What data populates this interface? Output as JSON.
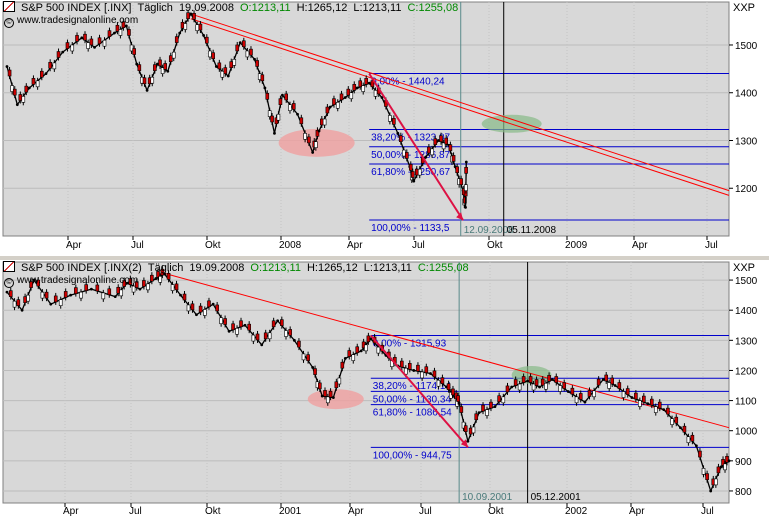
{
  "panels": [
    {
      "title": "S&P 500 INDEX [.INX]",
      "interval": "Täglich",
      "date": "19.09.2008",
      "open": "O:1213,11",
      "high": "H:1265,12",
      "low": "L:1213,11",
      "close": "C:1255,08",
      "watermark": "www.tradesignalonline.com",
      "ticker": "XXP",
      "y_ticks": [
        "1500",
        "1400",
        "1300",
        "1200"
      ],
      "x_ticks": [
        "Apr",
        "Jul",
        "Okt",
        "2008",
        "Apr",
        "Jul",
        "Okt",
        "2009",
        "Apr",
        "Jul"
      ],
      "fib_labels": [
        "0,00% - 1440,24",
        "38,20% - 1323,07",
        "50,00% - 1286,87",
        "61,80% - 1250,67",
        "100,00% - 1133,5"
      ],
      "date_labels": [
        "12.09.2008",
        "05.11.2008"
      ]
    },
    {
      "title": "S&P 500 INDEX [.INX(2)",
      "interval": "Täglich",
      "date": "19.09.2008",
      "open": "O:1213,11",
      "high": "H:1265,12",
      "low": "L:1213,11",
      "close": "C:1255,08",
      "watermark": "www.tradesignalonline.com",
      "ticker": "XXP",
      "y_ticks": [
        "1500",
        "1400",
        "1300",
        "1200",
        "1100",
        "1000",
        "900",
        "800"
      ],
      "x_ticks": [
        "Apr",
        "Jul",
        "Okt",
        "2001",
        "Apr",
        "Jul",
        "Okt",
        "2002",
        "Apr",
        "Jul"
      ],
      "fib_labels": [
        "0,00% - 1315,93",
        "38,20% - 1174,14",
        "50,00% - 1130,34",
        "61,80% - 1086,54",
        "100,00% - 944,75"
      ],
      "date_labels": [
        "10.09.2001",
        "05.12.2001"
      ]
    }
  ],
  "colors": {
    "plot_bg": "#d8d8d8",
    "fib": "#0000cc",
    "trend": "#ff0000",
    "arrow": "#dd1144",
    "ellipse_red": "#f0a0a0",
    "ellipse_green": "#88bb88",
    "candle_up": "#ffffff",
    "candle_down": "#cc0000",
    "vline": "#000000",
    "ohlc_open": "#008800",
    "ohlc_close": "#008800"
  },
  "chart_data": [
    {
      "type": "line",
      "title": "S&P 500 INDEX [.INX]",
      "ylim": [
        1100,
        1590
      ],
      "x_range": [
        "2007-02-15",
        "2009-08-15"
      ],
      "y_ticks": [
        1500,
        1400,
        1300,
        1200
      ],
      "grid": true,
      "series": [
        {
          "values": [
            [
              "2007-02-20",
              1455
            ],
            [
              "2007-03-05",
              1375
            ],
            [
              "2007-03-20",
              1410
            ],
            [
              "2007-04-10",
              1440
            ],
            [
              "2007-05-01",
              1485
            ],
            [
              "2007-05-25",
              1515
            ],
            [
              "2007-06-10",
              1495
            ],
            [
              "2007-07-05",
              1525
            ],
            [
              "2007-07-20",
              1540
            ],
            [
              "2007-08-02",
              1460
            ],
            [
              "2007-08-15",
              1405
            ],
            [
              "2007-08-28",
              1460
            ],
            [
              "2007-09-10",
              1445
            ],
            [
              "2007-09-25",
              1525
            ],
            [
              "2007-10-09",
              1565
            ],
            [
              "2007-10-25",
              1520
            ],
            [
              "2007-11-10",
              1455
            ],
            [
              "2007-11-25",
              1435
            ],
            [
              "2007-12-10",
              1505
            ],
            [
              "2007-12-28",
              1470
            ],
            [
              "2008-01-10",
              1410
            ],
            [
              "2008-01-22",
              1315
            ],
            [
              "2008-02-01",
              1395
            ],
            [
              "2008-02-20",
              1355
            ],
            [
              "2008-03-10",
              1275
            ],
            [
              "2008-03-18",
              1320
            ],
            [
              "2008-04-01",
              1370
            ],
            [
              "2008-04-20",
              1390
            ],
            [
              "2008-05-05",
              1410
            ],
            [
              "2008-05-20",
              1420
            ],
            [
              "2008-06-05",
              1390
            ],
            [
              "2008-06-25",
              1315
            ],
            [
              "2008-07-10",
              1245
            ],
            [
              "2008-07-15",
              1215
            ],
            [
              "2008-07-30",
              1265
            ],
            [
              "2008-08-15",
              1300
            ],
            [
              "2008-08-28",
              1290
            ],
            [
              "2008-09-05",
              1245
            ],
            [
              "2008-09-15",
              1195
            ],
            [
              "2008-09-18",
              1160
            ],
            [
              "2008-09-19",
              1255
            ]
          ]
        }
      ],
      "fibonacci": [
        {
          "level": "0,00%",
          "value": 1440.24
        },
        {
          "level": "38,20%",
          "value": 1323.07
        },
        {
          "level": "50,00%",
          "value": 1286.87
        },
        {
          "level": "61,80%",
          "value": 1250.67
        },
        {
          "level": "100,00%",
          "value": 1133.5
        }
      ],
      "vertical_markers": [
        "2008-09-12",
        "2008-11-05"
      ]
    },
    {
      "type": "line",
      "title": "S&P 500 INDEX [.INX(2)",
      "ylim": [
        760,
        1560
      ],
      "x_range": [
        "2000-02-15",
        "2002-08-15"
      ],
      "y_ticks": [
        1500,
        1400,
        1300,
        1200,
        1100,
        1000,
        900,
        800
      ],
      "grid": true,
      "series": [
        {
          "values": [
            [
              "2000-02-20",
              1460
            ],
            [
              "2000-03-10",
              1400
            ],
            [
              "2000-03-25",
              1500
            ],
            [
              "2000-04-15",
              1420
            ],
            [
              "2000-05-10",
              1450
            ],
            [
              "2000-06-05",
              1470
            ],
            [
              "2000-07-05",
              1445
            ],
            [
              "2000-07-20",
              1490
            ],
            [
              "2000-08-05",
              1470
            ],
            [
              "2000-08-25",
              1505
            ],
            [
              "2000-09-05",
              1520
            ],
            [
              "2000-09-25",
              1450
            ],
            [
              "2000-10-15",
              1385
            ],
            [
              "2000-11-05",
              1420
            ],
            [
              "2000-11-25",
              1330
            ],
            [
              "2000-12-15",
              1350
            ],
            [
              "2001-01-05",
              1285
            ],
            [
              "2001-01-25",
              1365
            ],
            [
              "2001-02-15",
              1300
            ],
            [
              "2001-03-10",
              1210
            ],
            [
              "2001-03-22",
              1115
            ],
            [
              "2001-04-05",
              1110
            ],
            [
              "2001-04-20",
              1240
            ],
            [
              "2001-05-10",
              1265
            ],
            [
              "2001-05-22",
              1305
            ],
            [
              "2001-06-10",
              1250
            ],
            [
              "2001-06-25",
              1215
            ],
            [
              "2001-07-15",
              1200
            ],
            [
              "2001-08-05",
              1190
            ],
            [
              "2001-08-25",
              1145
            ],
            [
              "2001-09-05",
              1110
            ],
            [
              "2001-09-10",
              1092
            ],
            [
              "2001-09-21",
              965
            ],
            [
              "2001-10-05",
              1060
            ],
            [
              "2001-10-25",
              1080
            ],
            [
              "2001-11-15",
              1145
            ],
            [
              "2001-12-05",
              1165
            ],
            [
              "2001-12-20",
              1145
            ],
            [
              "2002-01-05",
              1170
            ],
            [
              "2002-01-25",
              1130
            ],
            [
              "2002-02-15",
              1095
            ],
            [
              "2002-03-10",
              1170
            ],
            [
              "2002-03-25",
              1150
            ],
            [
              "2002-04-15",
              1110
            ],
            [
              "2002-05-05",
              1090
            ],
            [
              "2002-05-25",
              1070
            ],
            [
              "2002-06-15",
              1010
            ],
            [
              "2002-07-05",
              950
            ],
            [
              "2002-07-23",
              800
            ],
            [
              "2002-08-05",
              880
            ],
            [
              "2002-08-15",
              900
            ]
          ]
        }
      ],
      "fibonacci": [
        {
          "level": "0,00%",
          "value": 1315.93
        },
        {
          "level": "38,20%",
          "value": 1174.14
        },
        {
          "level": "50,00%",
          "value": 1130.34
        },
        {
          "level": "61,80%",
          "value": 1086.54
        },
        {
          "level": "100,00%",
          "value": 944.75
        }
      ],
      "vertical_markers": [
        "2001-09-10",
        "2001-12-05"
      ]
    }
  ]
}
